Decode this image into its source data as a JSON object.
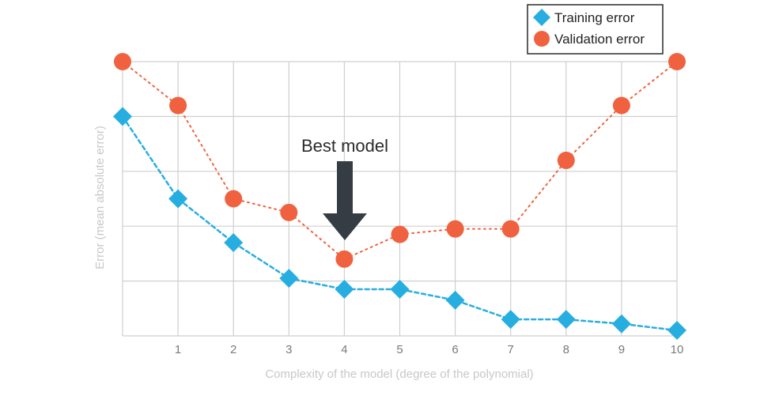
{
  "chart_data": {
    "type": "line",
    "x": [
      0,
      1,
      2,
      3,
      4,
      5,
      6,
      7,
      8,
      9,
      10
    ],
    "x_tick_labels": [
      "1",
      "2",
      "3",
      "4",
      "5",
      "6",
      "7",
      "8",
      "9",
      "10"
    ],
    "xlabel": "Complexity of the model (degree of the polynomial)",
    "ylabel": "Error (mean absolute error)",
    "ylim": [
      0,
      5
    ],
    "grid": true,
    "legend_position": "top-right",
    "series": [
      {
        "name": "Training error",
        "marker": "diamond",
        "line_style": "dashed",
        "color": "#27aee0",
        "values": [
          4.0,
          2.5,
          1.7,
          1.05,
          0.85,
          0.85,
          0.65,
          0.3,
          0.3,
          0.22,
          0.1
        ]
      },
      {
        "name": "Validation error",
        "marker": "circle",
        "line_style": "dotted",
        "color": "#f0623f",
        "values": [
          5.0,
          4.2,
          2.5,
          2.25,
          1.4,
          1.85,
          1.95,
          1.95,
          3.2,
          4.2,
          5.0
        ]
      }
    ],
    "annotations": [
      {
        "text": "Best model",
        "x": 4,
        "arrow": "down",
        "arrow_color": "#353c44"
      }
    ]
  }
}
